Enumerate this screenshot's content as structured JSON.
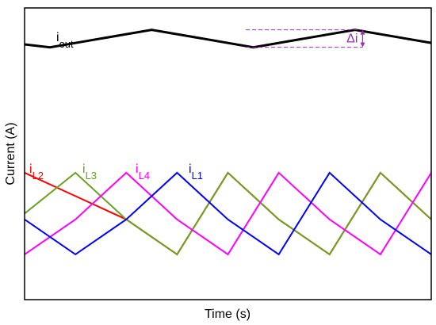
{
  "chart_data": {
    "type": "line",
    "title": "",
    "xlabel": "Time (s)",
    "ylabel": "Current (A)",
    "x_ticks": [],
    "y_ticks": [],
    "grid": false,
    "legend": "none",
    "xlim": [
      0,
      8
    ],
    "ylim": [
      0,
      10
    ],
    "series": [
      {
        "name": "iout",
        "label_main": "i",
        "label_sub": "out",
        "color": "#000000",
        "x": [
          0,
          0.5,
          2.5,
          4.5,
          6.5,
          8
        ],
        "y": [
          8.75,
          8.65,
          9.25,
          8.65,
          9.25,
          8.8
        ]
      },
      {
        "name": "iL2",
        "label_main": "i",
        "label_sub": "L2",
        "color": "#ff0000",
        "x": [
          0,
          1,
          2,
          3,
          4,
          5,
          6,
          7,
          8
        ],
        "y": [
          4.35,
          3.55,
          2.75,
          1.55,
          4.35,
          2.75,
          1.55,
          4.35,
          2.75
        ]
      },
      {
        "name": "iL3",
        "label_main": "i",
        "label_sub": "L3",
        "color": "#6aa121",
        "x": [
          0,
          1,
          2,
          3,
          4,
          5,
          6,
          7,
          8
        ],
        "y": [
          2.95,
          4.35,
          2.75,
          1.55,
          4.35,
          2.75,
          1.55,
          4.35,
          2.75
        ]
      },
      {
        "name": "iL4",
        "label_main": "i",
        "label_sub": "L4",
        "color": "#ff00ff",
        "x": [
          0,
          1,
          2,
          3,
          4,
          5,
          6,
          7,
          8
        ],
        "y": [
          1.55,
          2.75,
          4.35,
          2.75,
          1.55,
          4.35,
          2.75,
          1.55,
          4.35
        ]
      },
      {
        "name": "iL1",
        "label_main": "i",
        "label_sub": "L1",
        "color": "#0000ff",
        "x": [
          0,
          1,
          2,
          3,
          4,
          5,
          6,
          7,
          8
        ],
        "y": [
          2.75,
          1.55,
          2.75,
          4.35,
          2.75,
          1.55,
          4.35,
          2.75,
          1.55
        ]
      }
    ],
    "annotations": [
      {
        "name": "ripple",
        "text": "Δi",
        "color": "#9b30b0"
      }
    ]
  }
}
